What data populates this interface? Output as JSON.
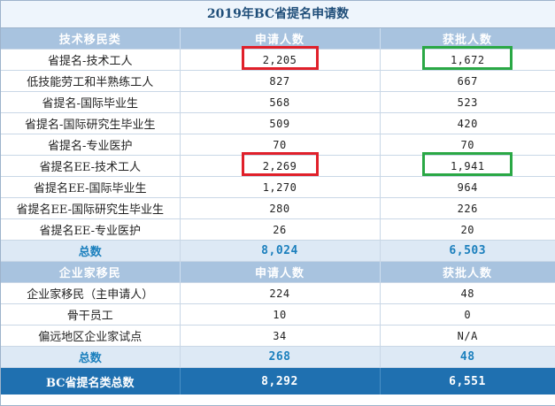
{
  "title": "2019年BC省提名申请数",
  "skilled": {
    "header": [
      "技术移民类",
      "申请人数",
      "获批人数"
    ],
    "rows": [
      [
        "省提名-技术工人",
        "2,205",
        "1,672"
      ],
      [
        "低技能劳工和半熟练工人",
        "827",
        "667"
      ],
      [
        "省提名-国际毕业生",
        "568",
        "523"
      ],
      [
        "省提名-国际研究生毕业生",
        "509",
        "420"
      ],
      [
        "省提名-专业医护",
        "70",
        "70"
      ],
      [
        "省提名EE-技术工人",
        "2,269",
        "1,941"
      ],
      [
        "省提名EE-国际毕业生",
        "1,270",
        "964"
      ],
      [
        "省提名EE-国际研究生毕业生",
        "280",
        "226"
      ],
      [
        "省提名EE-专业医护",
        "26",
        "20"
      ]
    ],
    "total": [
      "总数",
      "8,024",
      "6,503"
    ]
  },
  "entrepreneur": {
    "header": [
      "企业家移民",
      "申请人数",
      "获批人数"
    ],
    "rows": [
      [
        "企业家移民（主申请人）",
        "224",
        "48"
      ],
      [
        "骨干员工",
        "10",
        "0"
      ],
      [
        "偏远地区企业家试点",
        "34",
        "N/A"
      ]
    ],
    "total": [
      "总数",
      "268",
      "48"
    ]
  },
  "grand_total": [
    "BC省提名类总数",
    "8,292",
    "6,551"
  ],
  "highlight_colors": {
    "red": "#e0202a",
    "green": "#2aa845"
  }
}
